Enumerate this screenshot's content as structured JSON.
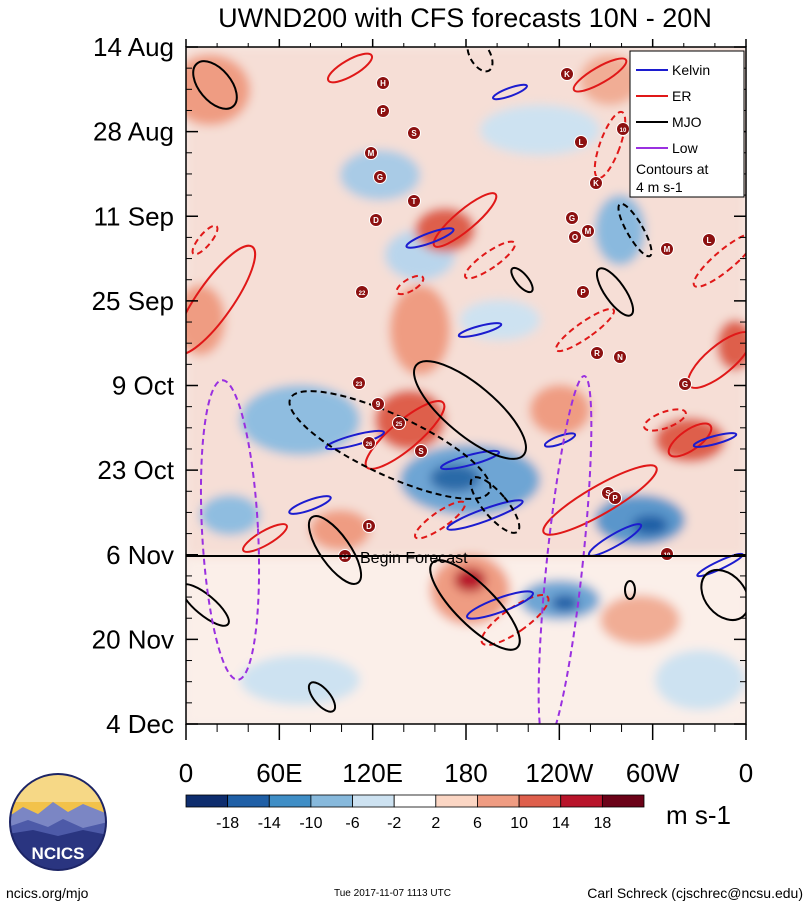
{
  "chart_data": {
    "type": "heatmap",
    "title": "UWND200 with CFS forecasts  10N - 20N",
    "y_axis": {
      "ticks": [
        "14 Aug",
        "28 Aug",
        "11 Sep",
        "25 Sep",
        "9 Oct",
        "23 Oct",
        "6 Nov",
        "20 Nov",
        "4 Dec"
      ]
    },
    "x_axis": {
      "ticks": [
        "0",
        "60E",
        "120E",
        "180",
        "120W",
        "60W",
        "0"
      ]
    },
    "forecast_line_label": "Begin Forecast",
    "legend": {
      "entries": [
        {
          "name": "Kelvin",
          "color": "#1c1ccf"
        },
        {
          "name": "ER",
          "color": "#e01818"
        },
        {
          "name": "MJO",
          "color": "#000000"
        },
        {
          "name": "Low",
          "color": "#9a30e0"
        }
      ],
      "note_line1": "Contours at",
      "note_line2": "4 m s-1"
    },
    "colorbar": {
      "unit": "m s-1",
      "labels": [
        "-18",
        "-14",
        "-10",
        "-6",
        "-2",
        "2",
        "6",
        "10",
        "14",
        "18"
      ],
      "colors": [
        "#0e2d6e",
        "#1f5fa6",
        "#3f8ec6",
        "#87b9dc",
        "#cde2f1",
        "#ffffff",
        "#fbd6c4",
        "#ef9c82",
        "#de5f4c",
        "#b8142a",
        "#6b0218"
      ]
    },
    "storm_labels": [
      "H",
      "P",
      "K",
      "S",
      "10",
      "M",
      "G",
      "L",
      "K",
      "T",
      "D",
      "G",
      "M",
      "M",
      "L",
      "O",
      "22",
      "P",
      "R",
      "N",
      "23",
      "G",
      "9",
      "25",
      "26",
      "S",
      "S",
      "P",
      "D",
      "29",
      "19"
    ]
  },
  "footer": {
    "logo_text": "NCICS",
    "site": "ncics.org/mjo",
    "timestamp": "Tue 2017-11-07 1113 UTC",
    "author": "Carl Schreck (cjschrec@ncsu.edu)"
  }
}
